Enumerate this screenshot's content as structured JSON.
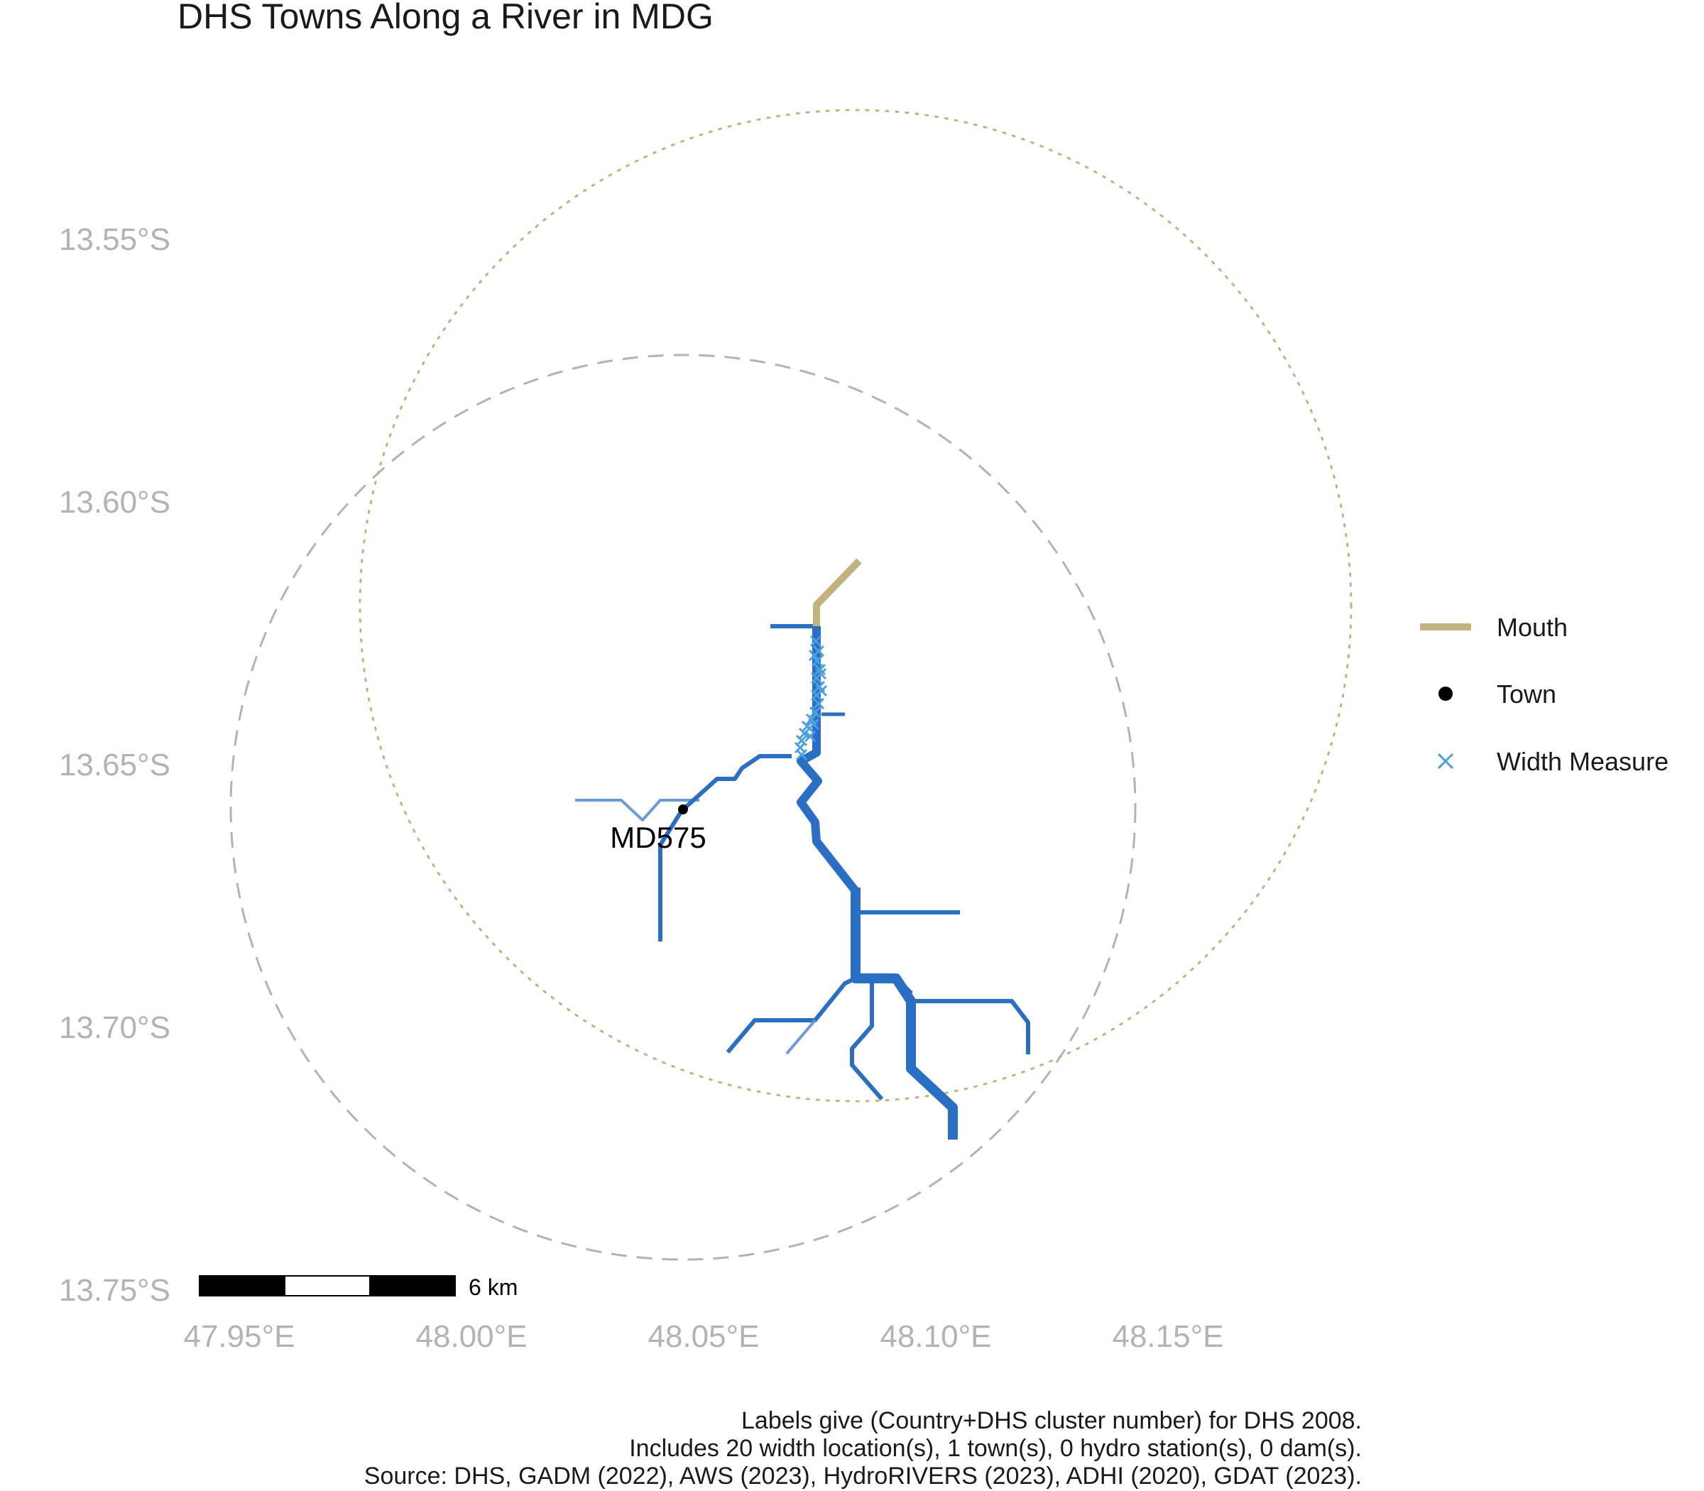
{
  "title": "DHS Towns Along a River in MDG",
  "axes": {
    "y_labels": [
      "13.55°S",
      "13.60°S",
      "13.65°S",
      "13.70°S",
      "13.75°S"
    ],
    "x_labels": [
      "47.95°E",
      "48.00°E",
      "48.05°E",
      "48.10°E",
      "48.15°E"
    ]
  },
  "legend": {
    "items": [
      {
        "label": "Mouth",
        "symbol": "line",
        "color": "#C2B280"
      },
      {
        "label": "Town",
        "symbol": "dot",
        "color": "#000000"
      },
      {
        "label": "Width Measure",
        "symbol": "x",
        "color": "#4A9FE0"
      }
    ]
  },
  "town": {
    "label": "MD575"
  },
  "scale_bar": {
    "label": "6 km"
  },
  "caption": {
    "line1": "Labels give (Country+DHS cluster number) for DHS 2008.",
    "line2": "Includes 20 width location(s), 1 town(s), 0 hydro station(s), 0 dam(s).",
    "line3": "Source: DHS, GADM (2022), AWS (2023), HydroRIVERS (2023), ADHI (2020), GDAT (2023)."
  },
  "colors": {
    "river": "#2B6FC4",
    "river_light": "#6A9AD8",
    "mouth": "#C2B280",
    "width_marker": "#4A9FE0",
    "dashed_circle": "#B3B3B3",
    "dotted_circle": "#C2B280",
    "axis_text": "#B3B3B3"
  }
}
